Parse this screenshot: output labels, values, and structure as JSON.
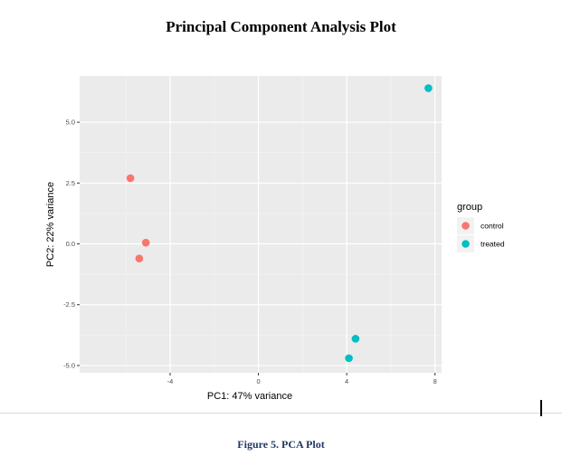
{
  "document": {
    "caption": "Figure 5. PCA Plot",
    "caption_color": "#1f3864"
  },
  "chart_data": {
    "type": "scatter",
    "title": "Principal Component Analysis Plot",
    "xlabel": "PC1: 47% variance",
    "ylabel": "PC2: 22% variance",
    "xlim": [
      -8.1,
      8.3
    ],
    "ylim": [
      -5.3,
      6.9
    ],
    "xticks": [
      -4,
      0,
      4,
      8
    ],
    "xtick_labels": [
      "-4",
      "0",
      "4",
      "8"
    ],
    "yticks": [
      -5.0,
      -2.5,
      0.0,
      2.5,
      5.0
    ],
    "ytick_labels": [
      "-5.0",
      "-2.5",
      "0.0",
      "2.5",
      "5.0"
    ],
    "grid": true,
    "legend": {
      "title": "group",
      "placement": "right"
    },
    "series": [
      {
        "name": "control",
        "color": "#f8766d",
        "points": [
          [
            -5.8,
            2.7
          ],
          [
            -5.1,
            0.05
          ],
          [
            -5.4,
            -0.6
          ]
        ]
      },
      {
        "name": "treated",
        "color": "#00bfc4",
        "points": [
          [
            7.7,
            6.4
          ],
          [
            4.4,
            -3.9
          ],
          [
            4.1,
            -4.7
          ]
        ]
      }
    ]
  }
}
